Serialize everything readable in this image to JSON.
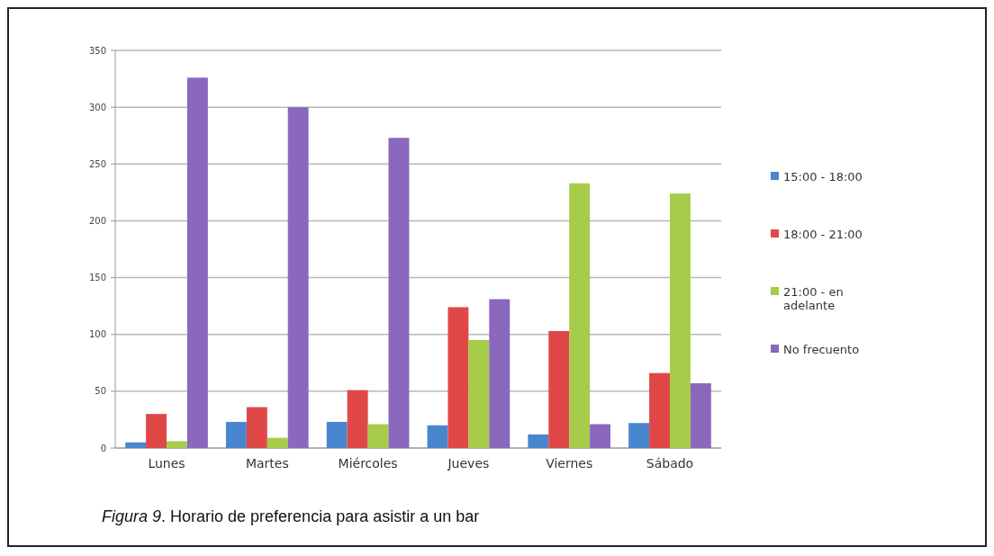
{
  "chart_data": {
    "type": "bar",
    "title": "Figura 9. Horario de preferencia para asistir a un bar",
    "categories": [
      "Lunes",
      "Martes",
      "Miércoles",
      "Jueves",
      "Viernes",
      "Sábado"
    ],
    "series": [
      {
        "name": "15:00 - 18:00",
        "color": "#4a86d0",
        "values": [
          5,
          23,
          23,
          20,
          12,
          22
        ]
      },
      {
        "name": "18:00 - 21:00",
        "color": "#e04848",
        "values": [
          30,
          36,
          51,
          124,
          103,
          66
        ]
      },
      {
        "name": "21:00 - en adelante",
        "color": "#a6cc4a",
        "values": [
          6,
          9,
          21,
          95,
          233,
          224
        ]
      },
      {
        "name": "No frecuento",
        "color": "#8a68bc",
        "values": [
          326,
          300,
          273,
          131,
          21,
          57
        ]
      }
    ],
    "ylim": [
      0,
      350
    ],
    "yticks": [
      0,
      50,
      100,
      150,
      200,
      250,
      300,
      350
    ],
    "grid": "y",
    "legend": "right"
  }
}
